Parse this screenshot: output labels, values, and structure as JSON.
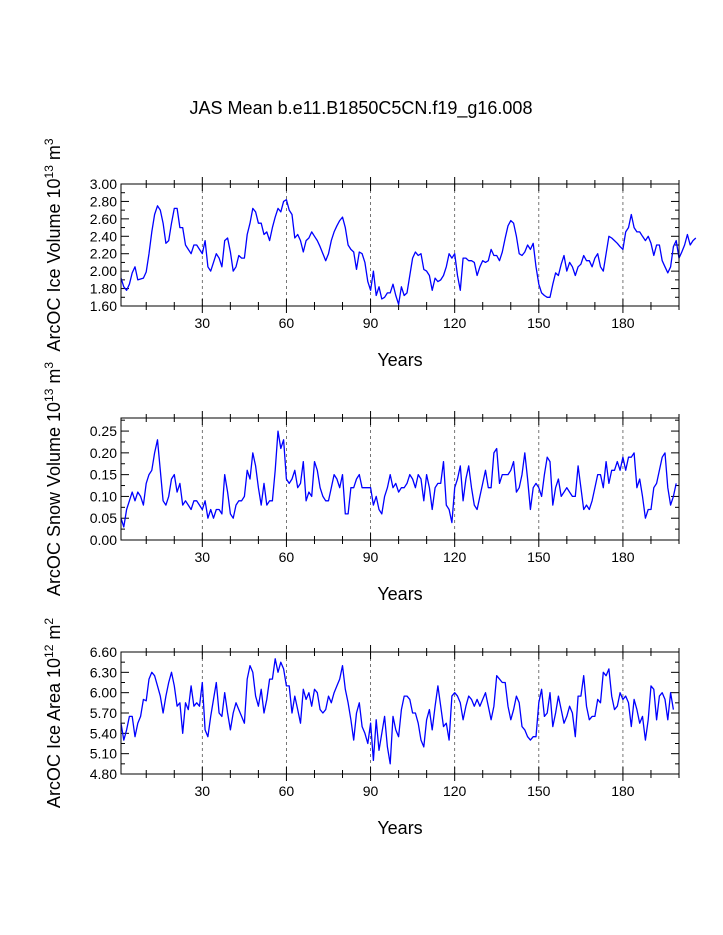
{
  "title": "JAS Mean b.e11.B1850C5CN.f19_g16.008",
  "colors": {
    "line": "#0000ff",
    "axis": "#000000",
    "grid": "#555555"
  },
  "chart_data": [
    {
      "type": "line",
      "title": "",
      "xlabel": "Years",
      "ylabel_parts": [
        "ArcOC Ice Volume 10",
        "13",
        " m",
        "3"
      ],
      "xlim": [
        1,
        200
      ],
      "ylim": [
        1.6,
        3.0
      ],
      "x_ticks": [
        30,
        60,
        90,
        120,
        150,
        180
      ],
      "x_tick_labels": [
        "30",
        "60",
        "90",
        "120",
        "150",
        "180"
      ],
      "y_ticks": [
        1.6,
        1.8,
        2.0,
        2.2,
        2.4,
        2.6,
        2.8,
        3.0
      ],
      "y_tick_labels": [
        "1.60",
        "1.80",
        "2.00",
        "2.20",
        "2.40",
        "2.60",
        "2.80",
        "3.00"
      ],
      "y_minor_step": 0.1,
      "grid_x": [
        30,
        60,
        90,
        120,
        150,
        180
      ],
      "series": [
        {
          "name": "Ice Volume",
          "values": [
            1.92,
            1.82,
            1.78,
            1.85,
            1.98,
            2.05,
            1.9,
            1.91,
            1.92,
            1.99,
            2.2,
            2.45,
            2.65,
            2.75,
            2.7,
            2.55,
            2.32,
            2.35,
            2.55,
            2.72,
            2.72,
            2.5,
            2.5,
            2.3,
            2.25,
            2.2,
            2.3,
            2.3,
            2.25,
            2.2,
            2.35,
            2.05,
            2.0,
            2.1,
            2.2,
            2.15,
            2.05,
            2.35,
            2.38,
            2.22,
            2.0,
            2.05,
            2.18,
            2.15,
            2.15,
            2.42,
            2.55,
            2.72,
            2.68,
            2.55,
            2.55,
            2.42,
            2.45,
            2.35,
            2.5,
            2.62,
            2.72,
            2.68,
            2.8,
            2.82,
            2.7,
            2.65,
            2.38,
            2.42,
            2.35,
            2.22,
            2.35,
            2.38,
            2.45,
            2.4,
            2.35,
            2.28,
            2.2,
            2.12,
            2.2,
            2.35,
            2.45,
            2.52,
            2.58,
            2.62,
            2.5,
            2.3,
            2.25,
            2.22,
            2.02,
            2.22,
            2.2,
            2.1,
            1.88,
            1.78,
            2.0,
            1.72,
            1.82,
            1.68,
            1.7,
            1.75,
            1.75,
            1.85,
            1.72,
            1.62,
            1.82,
            1.72,
            1.75,
            1.95,
            2.15,
            2.22,
            2.18,
            2.2,
            2.02,
            2.0,
            1.95,
            1.78,
            1.92,
            1.88,
            1.9,
            1.95,
            2.05,
            2.2,
            2.15,
            2.2,
            1.95,
            1.78,
            2.15,
            2.15,
            2.12,
            2.12,
            2.1,
            1.95,
            2.05,
            2.12,
            2.1,
            2.12,
            2.25,
            2.18,
            2.18,
            2.12,
            2.22,
            2.38,
            2.52,
            2.58,
            2.55,
            2.4,
            2.2,
            2.18,
            2.22,
            2.3,
            2.25,
            2.32,
            2.05,
            1.85,
            1.75,
            1.72,
            1.7,
            1.7,
            1.85,
            1.98,
            1.95,
            2.08,
            2.18,
            2.0,
            2.1,
            2.05,
            1.95,
            2.05,
            2.08,
            2.18,
            2.12,
            2.12,
            2.05,
            2.15,
            2.2,
            2.05,
            2.0,
            2.2,
            2.4,
            2.38,
            2.35,
            2.32,
            2.28,
            2.25,
            2.45,
            2.5,
            2.65,
            2.5,
            2.45,
            2.45,
            2.4,
            2.35,
            2.4,
            2.32,
            2.18,
            2.3,
            2.3,
            2.12,
            2.05,
            1.98,
            2.05,
            2.28,
            2.35,
            2.15,
            2.22,
            2.3,
            2.42,
            2.3,
            2.35,
            2.38
          ]
        }
      ]
    },
    {
      "type": "line",
      "title": "",
      "xlabel": "Years",
      "ylabel_parts": [
        "ArcOC Snow Volume 10",
        "13",
        " m",
        "3"
      ],
      "xlim": [
        1,
        200
      ],
      "ylim": [
        0.0,
        0.28
      ],
      "x_ticks": [
        30,
        60,
        90,
        120,
        150,
        180
      ],
      "x_tick_labels": [
        "30",
        "60",
        "90",
        "120",
        "150",
        "180"
      ],
      "y_ticks": [
        0.0,
        0.05,
        0.1,
        0.15,
        0.2,
        0.25
      ],
      "y_tick_labels": [
        "0.00",
        "0.05",
        "0.10",
        "0.15",
        "0.20",
        "0.25"
      ],
      "y_minor_step": 0.025,
      "grid_x": [
        30,
        60,
        90,
        120,
        150,
        180
      ],
      "series": [
        {
          "name": "Snow Volume",
          "values": [
            0.05,
            0.03,
            0.07,
            0.09,
            0.11,
            0.09,
            0.11,
            0.1,
            0.08,
            0.13,
            0.15,
            0.16,
            0.2,
            0.23,
            0.16,
            0.09,
            0.08,
            0.1,
            0.14,
            0.15,
            0.11,
            0.13,
            0.08,
            0.09,
            0.08,
            0.07,
            0.09,
            0.09,
            0.08,
            0.07,
            0.09,
            0.05,
            0.07,
            0.05,
            0.07,
            0.07,
            0.06,
            0.15,
            0.11,
            0.06,
            0.05,
            0.08,
            0.09,
            0.09,
            0.1,
            0.16,
            0.14,
            0.2,
            0.17,
            0.12,
            0.08,
            0.13,
            0.08,
            0.09,
            0.09,
            0.16,
            0.25,
            0.21,
            0.23,
            0.14,
            0.13,
            0.14,
            0.16,
            0.12,
            0.13,
            0.18,
            0.09,
            0.11,
            0.1,
            0.18,
            0.16,
            0.12,
            0.1,
            0.09,
            0.09,
            0.12,
            0.15,
            0.14,
            0.12,
            0.15,
            0.06,
            0.06,
            0.12,
            0.12,
            0.14,
            0.15,
            0.12,
            0.12,
            0.12,
            0.12,
            0.08,
            0.1,
            0.07,
            0.06,
            0.1,
            0.12,
            0.15,
            0.12,
            0.13,
            0.11,
            0.12,
            0.12,
            0.13,
            0.15,
            0.14,
            0.12,
            0.15,
            0.14,
            0.09,
            0.15,
            0.12,
            0.07,
            0.12,
            0.13,
            0.13,
            0.18,
            0.08,
            0.07,
            0.04,
            0.12,
            0.14,
            0.17,
            0.09,
            0.14,
            0.17,
            0.12,
            0.08,
            0.07,
            0.1,
            0.13,
            0.16,
            0.12,
            0.12,
            0.2,
            0.21,
            0.13,
            0.15,
            0.15,
            0.15,
            0.16,
            0.18,
            0.11,
            0.12,
            0.15,
            0.2,
            0.14,
            0.07,
            0.12,
            0.13,
            0.12,
            0.1,
            0.15,
            0.19,
            0.18,
            0.08,
            0.12,
            0.14,
            0.1,
            0.11,
            0.12,
            0.11,
            0.1,
            0.1,
            0.17,
            0.12,
            0.07,
            0.08,
            0.07,
            0.09,
            0.12,
            0.15,
            0.15,
            0.12,
            0.18,
            0.13,
            0.16,
            0.16,
            0.18,
            0.16,
            0.19,
            0.16,
            0.19,
            0.19,
            0.2,
            0.12,
            0.14,
            0.1,
            0.05,
            0.07,
            0.07,
            0.12,
            0.13,
            0.16,
            0.19,
            0.2,
            0.12,
            0.08,
            0.1,
            0.13
          ]
        }
      ]
    },
    {
      "type": "line",
      "title": "",
      "xlabel": "Years",
      "ylabel_parts": [
        "ArcOC Ice Area 10",
        "12",
        " m",
        "2"
      ],
      "xlim": [
        1,
        200
      ],
      "ylim": [
        4.8,
        6.6
      ],
      "x_ticks": [
        30,
        60,
        90,
        120,
        150,
        180
      ],
      "x_tick_labels": [
        "30",
        "60",
        "90",
        "120",
        "150",
        "180"
      ],
      "y_ticks": [
        4.8,
        5.1,
        5.4,
        5.7,
        6.0,
        6.3,
        6.6
      ],
      "y_tick_labels": [
        "4.80",
        "5.10",
        "5.40",
        "5.70",
        "6.00",
        "6.30",
        "6.60"
      ],
      "y_minor_step": 0.15,
      "grid_x": [
        30,
        60,
        90,
        120,
        150,
        180
      ],
      "series": [
        {
          "name": "Ice Area",
          "values": [
            5.55,
            5.3,
            5.45,
            5.65,
            5.65,
            5.35,
            5.55,
            5.65,
            5.9,
            5.88,
            6.2,
            6.3,
            6.25,
            6.1,
            5.95,
            5.7,
            5.95,
            6.15,
            6.3,
            6.1,
            5.8,
            5.85,
            5.4,
            5.85,
            5.75,
            6.1,
            5.8,
            5.85,
            5.8,
            6.15,
            5.45,
            5.35,
            5.65,
            5.9,
            6.15,
            5.7,
            5.65,
            6.0,
            5.7,
            5.45,
            5.7,
            5.85,
            5.75,
            5.65,
            5.55,
            6.2,
            6.4,
            6.3,
            5.95,
            5.8,
            6.05,
            5.7,
            5.9,
            6.2,
            6.2,
            6.5,
            6.3,
            6.45,
            6.35,
            6.1,
            6.1,
            5.7,
            5.95,
            5.75,
            5.55,
            6.05,
            5.9,
            6.0,
            5.8,
            6.05,
            6.0,
            5.75,
            5.7,
            5.75,
            5.95,
            5.85,
            6.0,
            6.1,
            6.2,
            6.4,
            6.05,
            5.85,
            5.6,
            5.3,
            5.7,
            5.85,
            5.5,
            5.4,
            5.25,
            5.55,
            5.0,
            5.6,
            5.15,
            5.4,
            5.65,
            5.2,
            4.95,
            5.65,
            5.45,
            5.35,
            5.75,
            5.95,
            5.95,
            5.9,
            5.7,
            5.7,
            5.55,
            5.3,
            5.2,
            5.6,
            5.75,
            5.45,
            5.8,
            6.1,
            5.8,
            5.5,
            5.55,
            5.3,
            5.95,
            6.0,
            5.95,
            5.85,
            5.6,
            5.8,
            5.95,
            5.9,
            5.8,
            5.9,
            5.8,
            5.9,
            6.0,
            5.8,
            5.6,
            5.8,
            6.25,
            6.2,
            6.15,
            6.15,
            5.8,
            5.6,
            5.75,
            5.95,
            5.85,
            5.5,
            5.45,
            5.35,
            5.3,
            5.35,
            5.35,
            5.85,
            6.05,
            5.65,
            5.7,
            6.0,
            5.5,
            5.7,
            5.95,
            5.75,
            5.55,
            5.65,
            5.8,
            5.7,
            5.35,
            5.95,
            5.95,
            6.25,
            5.8,
            5.6,
            5.65,
            5.65,
            5.9,
            5.85,
            6.3,
            6.25,
            6.35,
            5.95,
            5.75,
            5.8,
            6.0,
            5.9,
            5.95,
            5.85,
            5.5,
            5.9,
            5.75,
            5.55,
            5.65,
            5.3,
            5.6,
            6.1,
            6.05,
            5.6,
            5.95,
            6.0,
            5.9,
            5.6,
            6.0,
            5.75
          ]
        }
      ]
    }
  ]
}
